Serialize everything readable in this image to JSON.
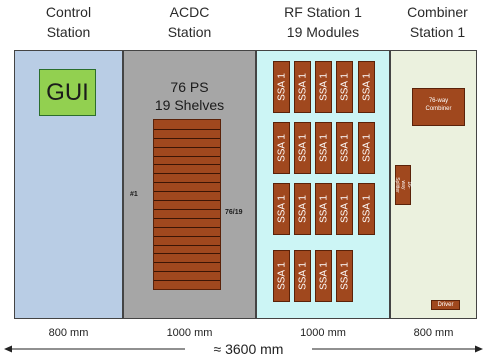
{
  "headers": {
    "control": "Control\nStation",
    "acdc": "ACDC\nStation",
    "rf": "RF Station 1\n19 Modules",
    "combiner": "Combiner\nStation 1"
  },
  "control": {
    "gui_label": "GUI"
  },
  "acdc": {
    "ps_label": "76 PS",
    "shelves_label": "19 Shelves",
    "first_marker": "#1",
    "last_marker": "76/19",
    "shelf_count": 19
  },
  "rf": {
    "module_label": "SSA 1",
    "module_count": 19
  },
  "combiner": {
    "combiner_label": "76-way\nCombiner",
    "splitter_label": "16-way\nSplitter",
    "driver_label": "Driver"
  },
  "dimensions": {
    "control": "800 mm",
    "acdc": "1000 mm",
    "rf": "1000 mm",
    "combiner": "800 mm",
    "total": "≈ 3600 mm"
  },
  "colors": {
    "control_bg": "#b9cde5",
    "acdc_bg": "#a6a6a6",
    "rf_bg": "#ccf5f5",
    "combiner_bg": "#ebf1de",
    "gui_green": "#92d050",
    "hardware_brown": "#a0481e"
  }
}
